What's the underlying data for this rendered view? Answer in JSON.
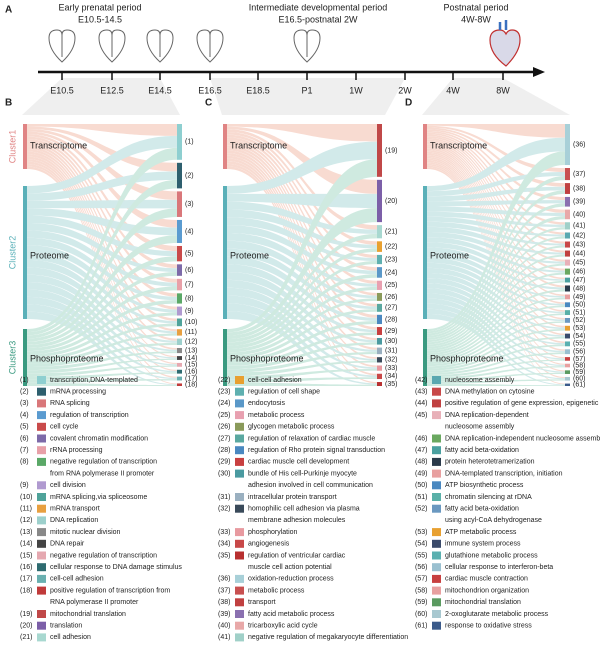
{
  "panel_a": {
    "letter": "A",
    "periods": [
      {
        "name": "Early prenatal period",
        "range": "E10.5-14.5"
      },
      {
        "name": "Intermediate developmental period",
        "range": "E16.5-postnatal 2W"
      },
      {
        "name": "Postnatal period",
        "range": "4W-8W"
      }
    ],
    "timepoints": [
      "E10.5",
      "E12.5",
      "E14.5",
      "E16.5",
      "E18.5",
      "P1",
      "1W",
      "2W",
      "4W",
      "8W"
    ]
  },
  "panels": [
    {
      "letter": "B",
      "sources": [
        "Transcriptome",
        "Proteome",
        "Phosphoproteome"
      ],
      "clusters": [
        "Cluster1",
        "Cluster2",
        "Cluster3"
      ],
      "sizes": [
        28,
        20,
        20,
        18,
        12,
        9,
        9,
        8,
        7,
        6,
        5,
        5,
        4,
        3,
        3,
        3,
        3,
        2
      ]
    },
    {
      "letter": "C",
      "sources": [
        "Transcriptome",
        "Proteome",
        "Phosphoproteome"
      ],
      "sizes": [
        40,
        32,
        10,
        8,
        7,
        8,
        7,
        6,
        6,
        7,
        6,
        5,
        5,
        4,
        4,
        4,
        3
      ]
    },
    {
      "letter": "D",
      "sources": [
        "Transcriptome",
        "Proteome",
        "Phosphoproteome"
      ],
      "sizes": [
        34,
        10,
        9,
        8,
        8,
        6,
        5,
        5,
        5,
        5,
        5,
        4,
        5,
        4,
        4,
        4,
        4,
        4,
        4,
        4,
        4,
        3,
        3,
        3,
        3,
        2
      ]
    }
  ],
  "legend": [
    {
      "label": "(1)",
      "color": "#8ecfd0",
      "text": [
        "transcription,DNA-templated"
      ]
    },
    {
      "label": "(2)",
      "color": "#2e5f6e",
      "text": [
        "mRNA processing"
      ]
    },
    {
      "label": "(3)",
      "color": "#d9777a",
      "text": [
        "RNA splicing"
      ]
    },
    {
      "label": "(4)",
      "color": "#5a9bd0",
      "text": [
        "regulation of transcription"
      ]
    },
    {
      "label": "(5)",
      "color": "#c94a4a",
      "text": [
        "cell cycle"
      ]
    },
    {
      "label": "(6)",
      "color": "#7d6aa8",
      "text": [
        "covalent chromatin modification"
      ]
    },
    {
      "label": "(7)",
      "color": "#e8a0a8",
      "text": [
        "rRNA processing"
      ]
    },
    {
      "label": "(8)",
      "color": "#5aa867",
      "text": [
        "negative regulation of transcription",
        "from RNA polymerase II promoter"
      ]
    },
    {
      "label": "(9)",
      "color": "#b09ad0",
      "text": [
        "cell division"
      ]
    },
    {
      "label": "(10)",
      "color": "#4fa39a",
      "text": [
        "mRNA splicing,via spliceosome"
      ]
    },
    {
      "label": "(11)",
      "color": "#e8a040",
      "text": [
        "mRNA transport"
      ]
    },
    {
      "label": "(12)",
      "color": "#9dd0cc",
      "text": [
        "DNA replication"
      ]
    },
    {
      "label": "(13)",
      "color": "#888888",
      "text": [
        "mitotic nuclear division"
      ]
    },
    {
      "label": "(14)",
      "color": "#444444",
      "text": [
        "DNA repair"
      ]
    },
    {
      "label": "(15)",
      "color": "#e5a8b0",
      "text": [
        "negative regulation of transcription"
      ]
    },
    {
      "label": "(16)",
      "color": "#2e6b70",
      "text": [
        "cellular response to DNA damage stimulus"
      ]
    },
    {
      "label": "(17)",
      "color": "#6ab0b0",
      "text": [
        "cell-cell adhesion"
      ]
    },
    {
      "label": "(18)",
      "color": "#c03a3a",
      "text": [
        "positive regulation of transcription from",
        "RNA polymerase II promoter"
      ]
    },
    {
      "label": "(19)",
      "color": "#c04848",
      "text": [
        "mitochondrial translation"
      ]
    },
    {
      "label": "(20)",
      "color": "#7c5fa8",
      "text": [
        "translation"
      ]
    },
    {
      "label": "(21)",
      "color": "#a8d8d0",
      "text": [
        "cell adhesion"
      ]
    },
    {
      "label": "(22)",
      "color": "#e8a030",
      "text": [
        "cell-cell adhesion"
      ]
    },
    {
      "label": "(23)",
      "color": "#5fb0b0",
      "text": [
        "regulation of cell shape"
      ]
    },
    {
      "label": "(24)",
      "color": "#5a98c8",
      "text": [
        "endocytosis"
      ]
    },
    {
      "label": "(25)",
      "color": "#e8a0b0",
      "text": [
        "metabolic process"
      ]
    },
    {
      "label": "(26)",
      "color": "#8a9a5a",
      "text": [
        "glycogen metabolic process"
      ]
    },
    {
      "label": "(27)",
      "color": "#5aa8a0",
      "text": [
        "regulation of relaxation of cardiac muscle"
      ]
    },
    {
      "label": "(28)",
      "color": "#4a88c0",
      "text": [
        "regulation of Rho protein signal transduction"
      ]
    },
    {
      "label": "(29)",
      "color": "#c84040",
      "text": [
        "cardiac muscle cell development"
      ]
    },
    {
      "label": "(30)",
      "color": "#4a9aa0",
      "text": [
        "bundle of His cell-Purkinje myocyte",
        "adhesion involved in cell communication"
      ]
    },
    {
      "label": "(31)",
      "color": "#9ab0c0",
      "text": [
        "intracellular protein transport"
      ]
    },
    {
      "label": "(32)",
      "color": "#3a4a5a",
      "text": [
        "homophilic cell adhesion via plasma",
        "membrane adhesion molecules"
      ]
    },
    {
      "label": "(33)",
      "color": "#e89aa0",
      "text": [
        "phosphorylation"
      ]
    },
    {
      "label": "(34)",
      "color": "#c84848",
      "text": [
        "angiogenesis"
      ]
    },
    {
      "label": "(35)",
      "color": "#b83030",
      "text": [
        "regulation of ventricular cardiac",
        "muscle cell action potential"
      ]
    },
    {
      "label": "(36)",
      "color": "#a8d0d8",
      "text": [
        "oxidation-reduction process"
      ]
    },
    {
      "label": "(37)",
      "color": "#c85050",
      "text": [
        "metabolic process"
      ]
    },
    {
      "label": "(38)",
      "color": "#c04040",
      "text": [
        "transport"
      ]
    },
    {
      "label": "(39)",
      "color": "#8a70b0",
      "text": [
        "fatty acid metabolic process"
      ]
    },
    {
      "label": "(40)",
      "color": "#e8a8a8",
      "text": [
        "tricarboxylic acid cycle"
      ]
    },
    {
      "label": "(41)",
      "color": "#a0d0c8",
      "text": [
        "negative regulation of  megakaryocyte differentiation"
      ]
    },
    {
      "label": "(42)",
      "color": "#5aa8b0",
      "text": [
        "nucleosome assembly"
      ]
    },
    {
      "label": "(43)",
      "color": "#c84848",
      "text": [
        "DNA methylation on cytosine"
      ]
    },
    {
      "label": "(44)",
      "color": "#c04040",
      "text": [
        "positive regulation of gene expression, epigenetic"
      ]
    },
    {
      "label": "(45)",
      "color": "#e8b0b8",
      "text": [
        "DNA replication-dependent",
        "nucleosome assembly"
      ]
    },
    {
      "label": "(46)",
      "color": "#6aa860",
      "text": [
        "DNA replication-independent nucleosome assembly"
      ]
    },
    {
      "label": "(47)",
      "color": "#4aa0a0",
      "text": [
        "fatty acid beta-oxidation"
      ]
    },
    {
      "label": "(48)",
      "color": "#2a3a4a",
      "text": [
        "protein heterotetramerization"
      ]
    },
    {
      "label": "(49)",
      "color": "#e8a0a0",
      "text": [
        "DNA-templated transcription, initiation"
      ]
    },
    {
      "label": "(50)",
      "color": "#4a88c0",
      "text": [
        "ATP biosynthetic process"
      ]
    },
    {
      "label": "(51)",
      "color": "#5ab0a8",
      "text": [
        "chromatin silencing at rDNA"
      ]
    },
    {
      "label": "(52)",
      "color": "#6a98c0",
      "text": [
        "fatty acid beta-oxidation",
        "using acyl-CoA dehydrogenase"
      ]
    },
    {
      "label": "(53)",
      "color": "#e8a030",
      "text": [
        "ATP metabolic process"
      ]
    },
    {
      "label": "(54)",
      "color": "#3a4a6a",
      "text": [
        "immune system process"
      ]
    },
    {
      "label": "(55)",
      "color": "#5ab0b0",
      "text": [
        "glutathione metabolic process"
      ]
    },
    {
      "label": "(56)",
      "color": "#9ac0d0",
      "text": [
        "cellular response to interferon-beta"
      ]
    },
    {
      "label": "(57)",
      "color": "#c84040",
      "text": [
        "cardiac muscle contraction"
      ]
    },
    {
      "label": "(58)",
      "color": "#e8a0a0",
      "text": [
        "mitochondrion organization"
      ]
    },
    {
      "label": "(59)",
      "color": "#5a9a60",
      "text": [
        "mitochondrial translation"
      ]
    },
    {
      "label": "(60)",
      "color": "#a8c8d0",
      "text": [
        "2-oxoglutarate metabolic process"
      ]
    },
    {
      "label": "(61)",
      "color": "#3a5a8a",
      "text": [
        "response to oxidative stress"
      ]
    }
  ]
}
